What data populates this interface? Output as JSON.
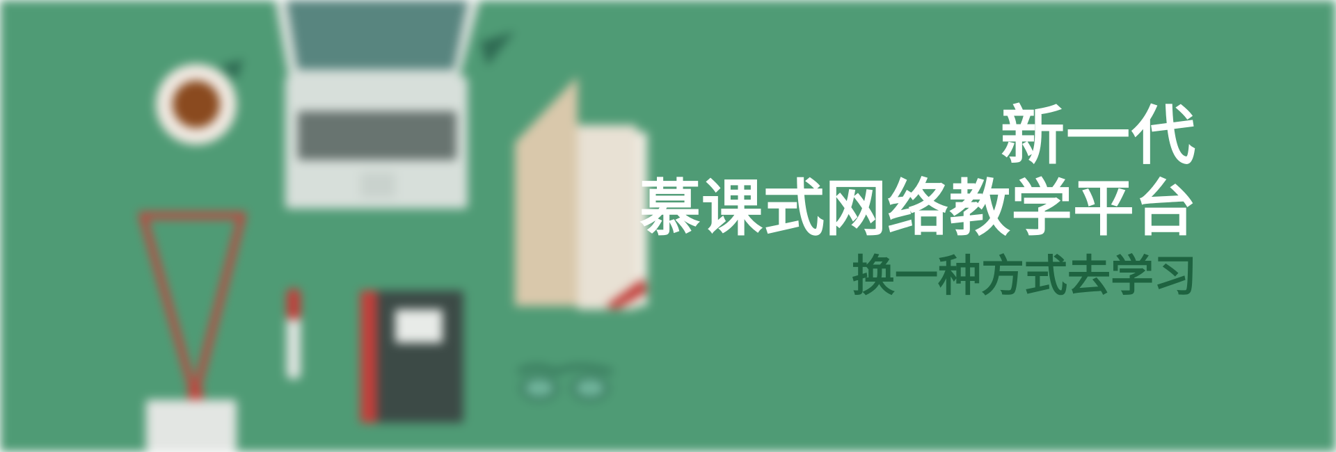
{
  "banner": {
    "headline_line1": "新一代",
    "headline_line2": "慕课式网络教学平台",
    "tagline": "换一种方式去学习"
  },
  "colors": {
    "background": "#4f9b75",
    "headline": "#ffffff",
    "tagline": "#1e6340",
    "laptop_body": "#d7dfda",
    "laptop_screen": "#58857f",
    "coffee_cup": "#efe8e0",
    "coffee": "#8a4a1f",
    "lanyard": "#c0463f",
    "notebook": "#3c4a46",
    "notebook_spine": "#c13f3b",
    "folder": "#d9c8ab",
    "paper": "#f1ece3",
    "glasses": "#2f6b53"
  },
  "illustration": {
    "items": [
      "laptop-icon",
      "coffee-cup-icon",
      "lanyard-badge-icon",
      "pen-icon",
      "notebook-icon",
      "folder-icon",
      "glasses-icon"
    ]
  }
}
